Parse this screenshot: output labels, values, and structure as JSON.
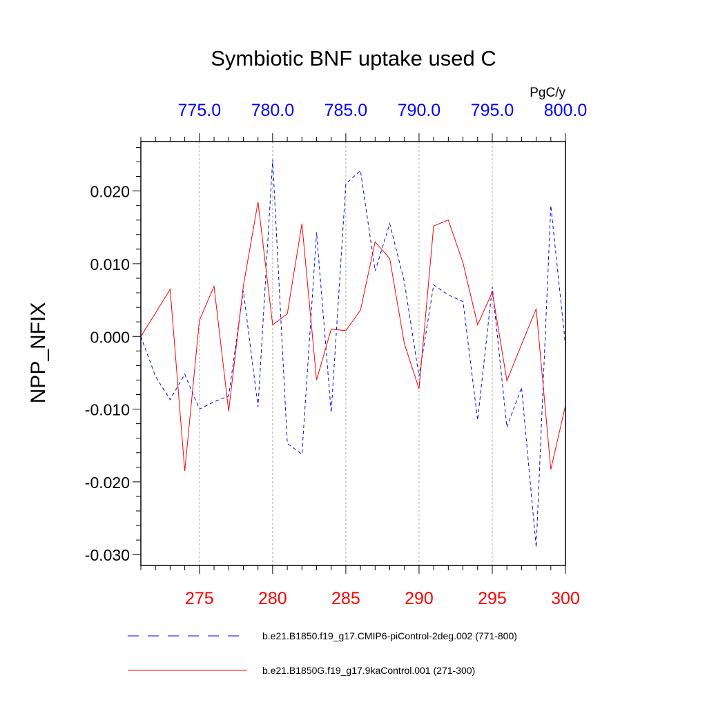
{
  "chart_data": {
    "type": "line",
    "title": "Symbiotic BNF uptake used C",
    "units": "PgC/y",
    "ylabel": "NPP_NFIX",
    "ylim": [
      -0.0315,
      0.0268
    ],
    "yticks": [
      "0.020",
      "0.010",
      "0.000",
      "-0.010",
      "-0.020",
      "-0.030"
    ],
    "ytick_values": [
      0.02,
      0.01,
      0.0,
      -0.01,
      -0.02,
      -0.03
    ],
    "bottom_axis": {
      "xlim": [
        271,
        300
      ],
      "ticks": [
        "275",
        "280",
        "285",
        "290",
        "295",
        "300"
      ],
      "tick_values": [
        275,
        280,
        285,
        290,
        295,
        300
      ],
      "color": "#ff0000"
    },
    "top_axis": {
      "xlim": [
        771,
        800
      ],
      "ticks": [
        "775.0",
        "780.0",
        "785.0",
        "790.0",
        "795.0",
        "800.0"
      ],
      "tick_values": [
        775,
        780,
        785,
        790,
        795,
        800
      ],
      "color": "#0000ff"
    },
    "series": [
      {
        "name": "b.e21.B1850.f19_g17.CMIP6-piControl-2deg.002 (771-800)",
        "color": "#0000ff",
        "dash": "dashed",
        "x": [
          771,
          772,
          773,
          774,
          775,
          776,
          777,
          778,
          779,
          780,
          781,
          782,
          783,
          784,
          785,
          786,
          787,
          788,
          789,
          790,
          791,
          792,
          793,
          794,
          795,
          796,
          797,
          798,
          799,
          800
        ],
        "values": [
          0.0,
          -0.0055,
          -0.0087,
          -0.0052,
          -0.01,
          -0.009,
          -0.0082,
          0.0063,
          -0.0097,
          0.0243,
          -0.0147,
          -0.0162,
          0.0143,
          -0.0105,
          0.021,
          0.0228,
          0.009,
          0.0155,
          0.0075,
          -0.0055,
          0.0071,
          0.0057,
          0.0048,
          -0.0115,
          0.0068,
          -0.0125,
          -0.007,
          -0.029,
          0.018,
          -0.0012
        ]
      },
      {
        "name": "b.e21.B1850G.f19_g17.9kaControl.001 (271-300)",
        "color": "#ff0000",
        "dash": "solid",
        "x": [
          271,
          272,
          273,
          274,
          275,
          276,
          277,
          278,
          279,
          280,
          281,
          282,
          283,
          284,
          285,
          286,
          287,
          288,
          289,
          290,
          291,
          292,
          293,
          294,
          295,
          296,
          297,
          298,
          299,
          300
        ],
        "values": [
          0.0,
          0.0032,
          0.0065,
          -0.0185,
          0.0022,
          0.0069,
          -0.0103,
          0.0069,
          0.0185,
          0.0016,
          0.0031,
          0.0155,
          -0.006,
          0.001,
          0.0008,
          0.0036,
          0.013,
          0.0107,
          -0.001,
          -0.0072,
          0.0152,
          0.016,
          0.0101,
          0.0016,
          0.0061,
          -0.0061,
          -0.0011,
          0.0038,
          -0.0183,
          -0.0095
        ]
      }
    ],
    "legend": "bottom"
  }
}
